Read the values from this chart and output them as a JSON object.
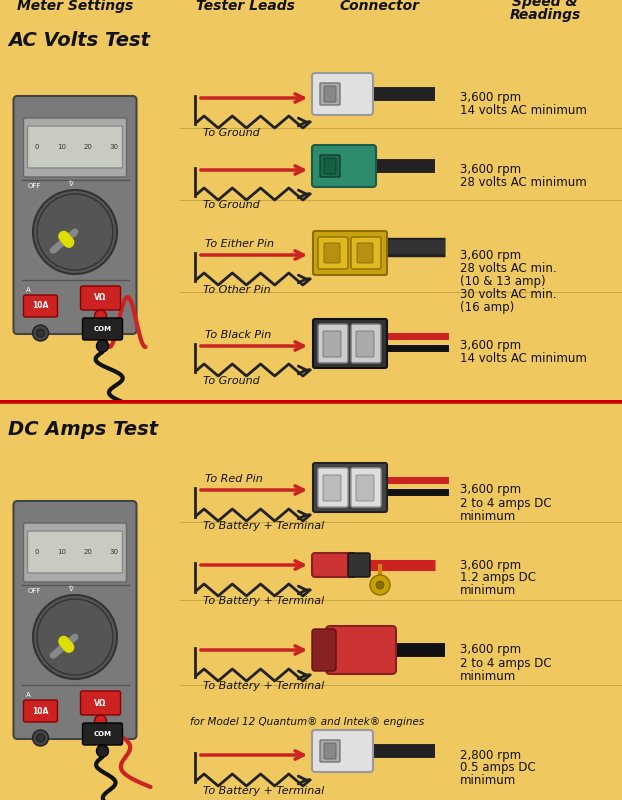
{
  "bg_color": "#f0c860",
  "bg_top": "#f2cc72",
  "bg_bot": "#e8be58",
  "divider_red": "#cc0000",
  "divider_tan": "#c8a840",
  "text_black": "#111111",
  "title_ac": "AC Volts Test",
  "title_dc": "DC Amps Test",
  "col_meter": "Meter Settings",
  "col_leads": "Tester Leads",
  "col_connector": "Connector",
  "col_speed1": "Speed &",
  "col_speed2": "Readings",
  "meter_body": "#888888",
  "meter_screen": "#c8ccc0",
  "meter_dial": "#555555",
  "meter_pointer": "#dddd00",
  "ac_rows": [
    {
      "rl": null,
      "bl": "To Ground",
      "conn": "white_plug",
      "reading": [
        "3,600 rpm",
        "14 volts AC minimum"
      ]
    },
    {
      "rl": null,
      "bl": "To Ground",
      "conn": "green_plug",
      "reading": [
        "3,600 rpm",
        "28 volts AC minimum"
      ]
    },
    {
      "rl": "To Either Pin",
      "bl": "To Other Pin",
      "conn": "gold_square",
      "reading": [
        "3,600 rpm",
        "28 volts AC min.",
        "(10 & 13 amp)",
        "30 volts AC min.",
        "(16 amp)"
      ]
    },
    {
      "rl": "To Black Pin",
      "bl": "To Ground",
      "conn": "black_square",
      "reading": [
        "3,600 rpm",
        "14 volts AC minimum"
      ]
    }
  ],
  "dc_rows": [
    {
      "rl": "To Red Pin",
      "bl": "To Battery + Terminal",
      "conn": "white_square2",
      "reading": [
        "3,600 rpm",
        "2 to 4 amps DC",
        "minimum"
      ]
    },
    {
      "rl": null,
      "bl": "To Battery + Terminal",
      "conn": "bullet_red",
      "reading": [
        "3,600 rpm",
        "1.2 amps DC",
        "minimum"
      ]
    },
    {
      "rl": null,
      "bl": "To Battery + Terminal",
      "conn": "ring_red",
      "reading": [
        "3,600 rpm",
        "2 to 4 amps DC",
        "minimum"
      ]
    },
    {
      "rl": null,
      "bl": "To Battery + Terminal",
      "conn": "white_plug2",
      "reading": [
        "2,800 rpm",
        "0.5 amps DC",
        "minimum"
      ],
      "note": "for Model 12 Quantum® and Intek® engines"
    }
  ]
}
